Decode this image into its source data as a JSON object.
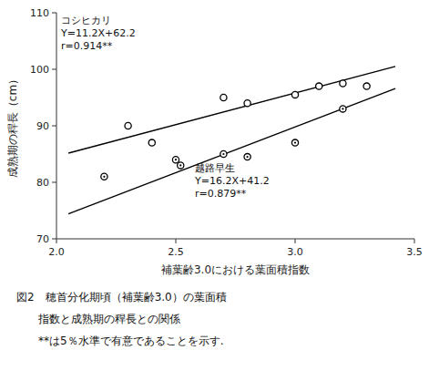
{
  "chart_data": {
    "type": "scatter",
    "series": [
      {
        "type": "scatter",
        "marker": "circle",
        "color": "#000000",
        "x": [
          2.3,
          2.4,
          2.7,
          2.8,
          3.0,
          3.1,
          3.2,
          3.3
        ],
        "values": [
          90.0,
          87.0,
          95.0,
          94.0,
          95.5,
          97.0,
          97.5,
          97.0
        ]
      },
      {
        "type": "scatter",
        "marker": "dotted-circle",
        "color": "#000000",
        "x": [
          2.2,
          2.5,
          2.52,
          2.7,
          2.8,
          3.0,
          3.2
        ],
        "values": [
          81.0,
          84.0,
          83.0,
          85.0,
          84.5,
          87.0,
          93.0
        ]
      },
      {
        "type": "line",
        "color": "#000000",
        "x": [
          2.05,
          3.42
        ],
        "values": [
          85.16,
          100.504
        ]
      },
      {
        "type": "line",
        "color": "#000000",
        "x": [
          2.05,
          3.42
        ],
        "values": [
          74.41,
          96.604
        ]
      }
    ],
    "annotations": [
      "コシヒカリ",
      "Y=11.2X+62.2",
      "r=0.914**",
      "越路早生",
      "Y=16.2X+41.2",
      "r=0.879**"
    ],
    "xlabel": "補葉齢3.0における葉面積指数",
    "ylabel": "成熟期の稈長（cm）",
    "caption": [
      "図2　穂首分化期頃（補葉齢3.0）の葉面積",
      "　　指数と成熟期の稈長との関係",
      "　　**は5％水準で有意であることを示す."
    ],
    "xlim": [
      2.0,
      3.5
    ],
    "ylim": [
      70,
      110
    ],
    "xticks": [
      {
        "value": 2.0,
        "label": "2.0"
      },
      2.5,
      {
        "value": 3.0,
        "label": "3.0"
      },
      3.5
    ],
    "yticks": [
      70,
      80,
      90,
      100,
      110
    ]
  }
}
